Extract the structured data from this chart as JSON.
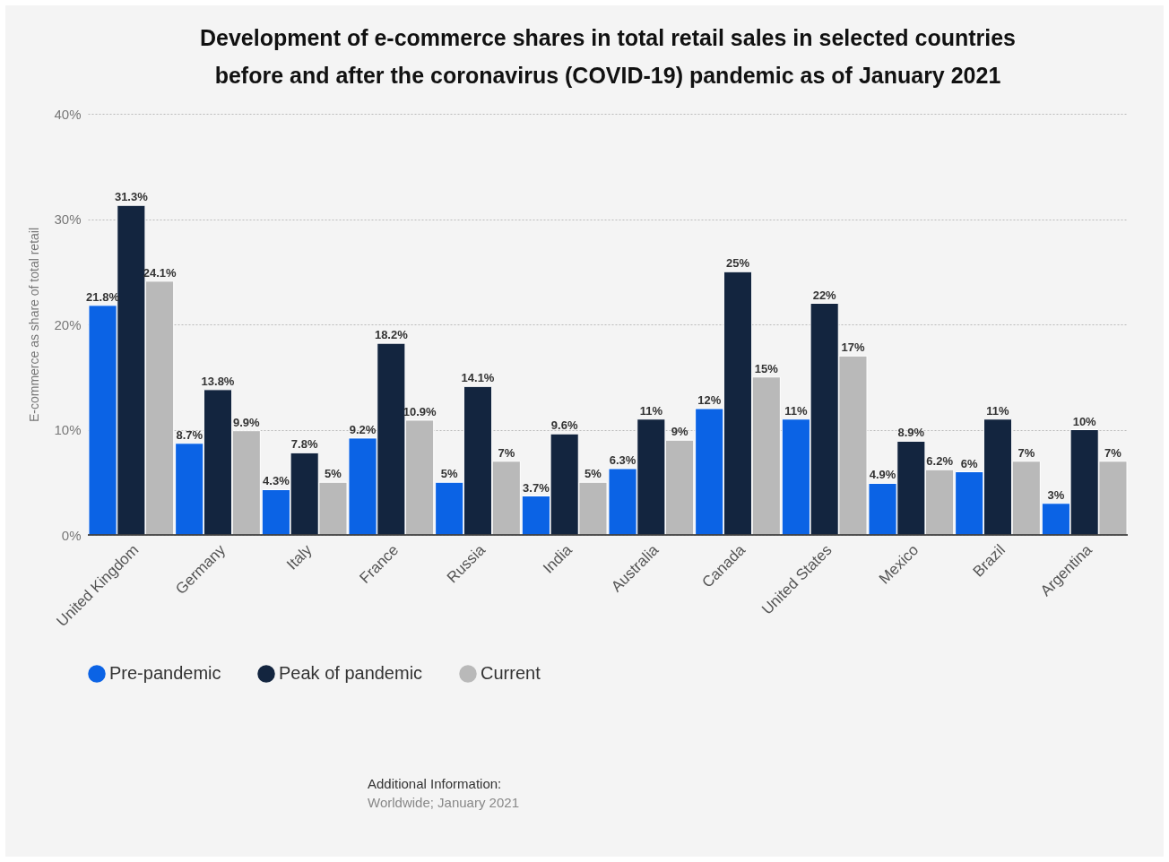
{
  "chart_data": {
    "type": "bar",
    "title": "Development of e-commerce shares in total retail sales in selected countries before and after the coronavirus (COVID-19) pandemic as of January 2021",
    "ylabel": "E-commerce as share of total retail",
    "categories": [
      "United Kingdom",
      "Germany",
      "Italy",
      "France",
      "Russia",
      "India",
      "Australia",
      "Canada",
      "United States",
      "Mexico",
      "Brazil",
      "Argentina"
    ],
    "series": [
      {
        "name": "Pre-pandemic",
        "color": "#0b63e5",
        "values": [
          21.8,
          8.7,
          4.3,
          9.2,
          5,
          3.7,
          6.3,
          12,
          11,
          4.9,
          6,
          3
        ],
        "value_labels": [
          "21.8%",
          "8.7%",
          "4.3%",
          "9.2%",
          "5%",
          "3.7%",
          "6.3%",
          "12%",
          "11%",
          "4.9%",
          "6%",
          "3%"
        ]
      },
      {
        "name": "Peak of pandemic",
        "color": "#13253f",
        "values": [
          31.3,
          13.8,
          7.8,
          18.2,
          14.1,
          9.6,
          11,
          25,
          22,
          8.9,
          11,
          10
        ],
        "value_labels": [
          "31.3%",
          "13.8%",
          "7.8%",
          "18.2%",
          "14.1%",
          "9.6%",
          "11%",
          "25%",
          "22%",
          "8.9%",
          "11%",
          "10%"
        ]
      },
      {
        "name": "Current",
        "color": "#b9b9b9",
        "values": [
          24.1,
          9.9,
          5,
          10.9,
          7,
          5,
          9,
          15,
          17,
          6.2,
          7,
          7
        ],
        "value_labels": [
          "24.1%",
          "9.9%",
          "5%",
          "10.9%",
          "7%",
          "5%",
          "9%",
          "15%",
          "17%",
          "6.2%",
          "7%",
          "7%"
        ]
      }
    ],
    "ylim": [
      0,
      40
    ],
    "yticks": [
      {
        "value": 0,
        "label": "0%"
      },
      {
        "value": 10,
        "label": "10%"
      },
      {
        "value": 20,
        "label": "20%"
      },
      {
        "value": 30,
        "label": "30%"
      },
      {
        "value": 40,
        "label": "40%"
      }
    ],
    "grid": "y",
    "legend": "bottom",
    "marker": "circle",
    "annotations": [
      "Additional Information:",
      "Worldwide; January 2021"
    ]
  }
}
